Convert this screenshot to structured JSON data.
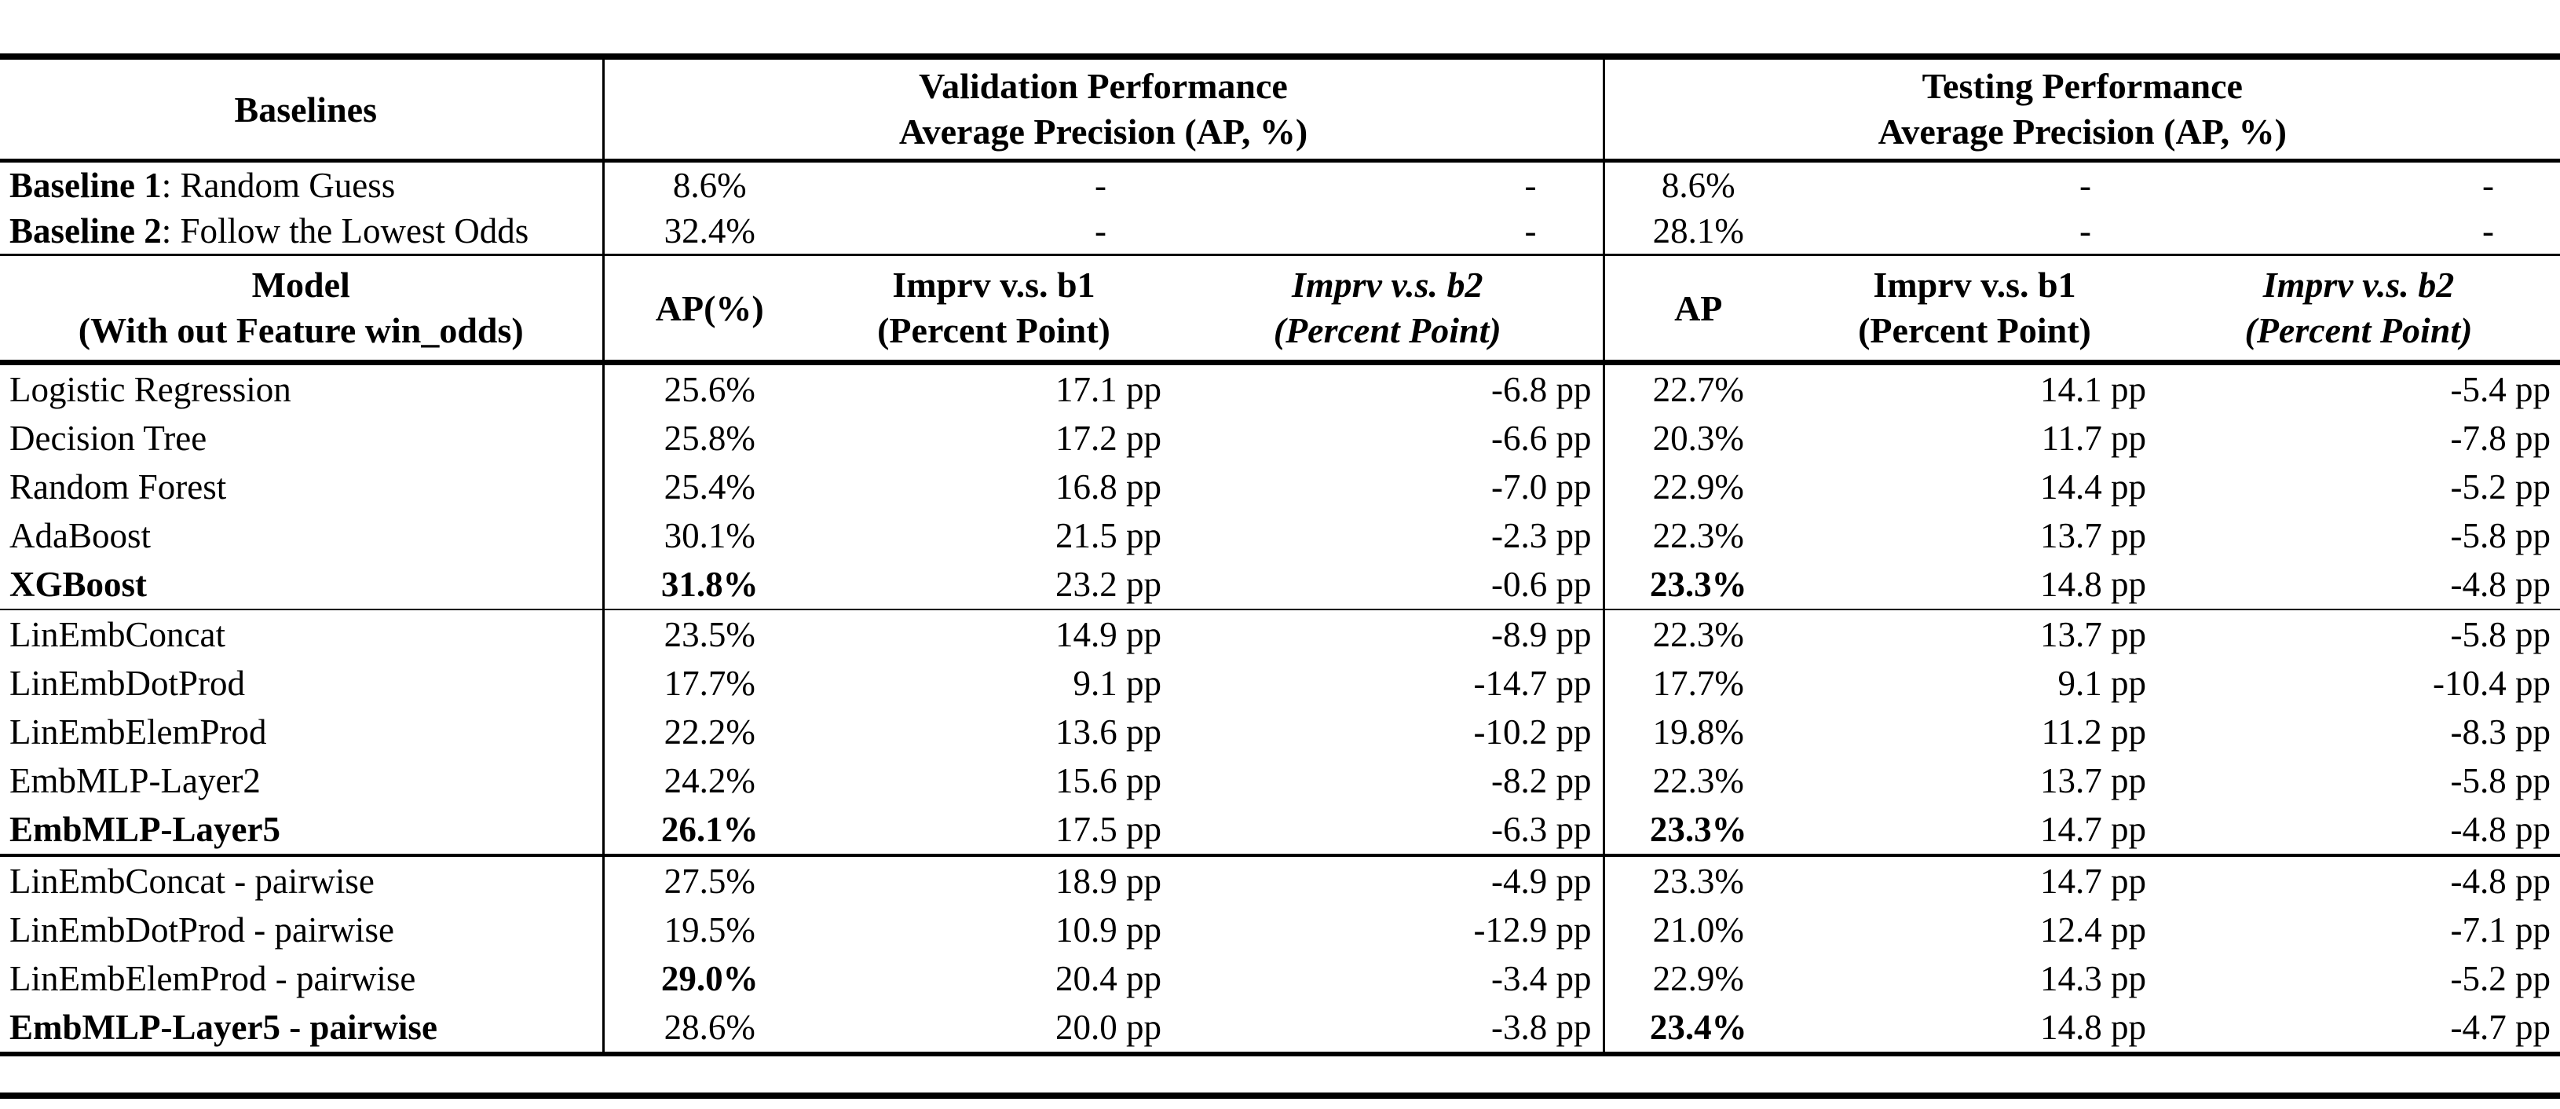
{
  "table": {
    "header": {
      "baselines_label": "Baselines",
      "validation_title": "Validation Performance",
      "validation_subtitle": "Average Precision (AP, %)",
      "testing_title": "Testing Performance",
      "testing_subtitle": "Average Precision (AP, %)",
      "model_title": "Model",
      "model_subtitle": "(With out Feature win_odds)",
      "val_ap_label": "AP(%)",
      "test_ap_label": "AP",
      "imprv_b1_label": "Imprv v.s. b1",
      "imprv_b1_sub": "(Percent Point)",
      "imprv_b2_label": "Imprv v.s. b2",
      "imprv_b2_sub": "(Percent Point)"
    },
    "baseline_rows": [
      {
        "prefix": "Baseline 1",
        "rest": ": Random Guess",
        "cells": [
          "8.6%",
          "-",
          "-",
          "8.6%",
          "-",
          "-"
        ]
      },
      {
        "prefix": "Baseline 2",
        "rest": ": Follow the Lowest Odds",
        "cells": [
          "32.4%",
          "-",
          "-",
          "28.1%",
          "-",
          "-"
        ]
      }
    ],
    "groups": [
      {
        "rows": [
          {
            "model": "Logistic Regression",
            "model_bold": false,
            "cells": [
              "25.6%",
              "17.1 pp",
              "-6.8 pp",
              "22.7%",
              "14.1 pp",
              "-5.4 pp"
            ],
            "bold": [
              false,
              false,
              false,
              false,
              false,
              false
            ]
          },
          {
            "model": "Decision Tree",
            "model_bold": false,
            "cells": [
              "25.8%",
              "17.2 pp",
              "-6.6 pp",
              "20.3%",
              "11.7 pp",
              "-7.8 pp"
            ],
            "bold": [
              false,
              false,
              false,
              false,
              false,
              false
            ]
          },
          {
            "model": "Random Forest",
            "model_bold": false,
            "cells": [
              "25.4%",
              "16.8 pp",
              "-7.0 pp",
              "22.9%",
              "14.4 pp",
              "-5.2 pp"
            ],
            "bold": [
              false,
              false,
              false,
              false,
              false,
              false
            ]
          },
          {
            "model": "AdaBoost",
            "model_bold": false,
            "cells": [
              "30.1%",
              "21.5 pp",
              "-2.3 pp",
              "22.3%",
              "13.7 pp",
              "-5.8 pp"
            ],
            "bold": [
              false,
              false,
              false,
              false,
              false,
              false
            ]
          },
          {
            "model": "XGBoost",
            "model_bold": true,
            "cells": [
              "31.8%",
              "23.2 pp",
              "-0.6 pp",
              "23.3%",
              "14.8 pp",
              "-4.8 pp"
            ],
            "bold": [
              true,
              false,
              false,
              true,
              false,
              false
            ]
          }
        ]
      },
      {
        "rows": [
          {
            "model": "LinEmbConcat",
            "model_bold": false,
            "cells": [
              "23.5%",
              "14.9 pp",
              "-8.9 pp",
              "22.3%",
              "13.7 pp",
              "-5.8 pp"
            ],
            "bold": [
              false,
              false,
              false,
              false,
              false,
              false
            ]
          },
          {
            "model": "LinEmbDotProd",
            "model_bold": false,
            "cells": [
              "17.7%",
              "9.1 pp",
              "-14.7 pp",
              "17.7%",
              "9.1 pp",
              "-10.4 pp"
            ],
            "bold": [
              false,
              false,
              false,
              false,
              false,
              false
            ]
          },
          {
            "model": "LinEmbElemProd",
            "model_bold": false,
            "cells": [
              "22.2%",
              "13.6 pp",
              "-10.2 pp",
              "19.8%",
              "11.2 pp",
              "-8.3 pp"
            ],
            "bold": [
              false,
              false,
              false,
              false,
              false,
              false
            ]
          },
          {
            "model": "EmbMLP-Layer2",
            "model_bold": false,
            "cells": [
              "24.2%",
              "15.6 pp",
              "-8.2 pp",
              "22.3%",
              "13.7 pp",
              "-5.8 pp"
            ],
            "bold": [
              false,
              false,
              false,
              false,
              false,
              false
            ]
          },
          {
            "model": "EmbMLP-Layer5",
            "model_bold": true,
            "cells": [
              "26.1%",
              "17.5 pp",
              "-6.3 pp",
              "23.3%",
              "14.7 pp",
              "-4.8 pp"
            ],
            "bold": [
              true,
              false,
              false,
              true,
              false,
              false
            ]
          }
        ]
      },
      {
        "rows": [
          {
            "model": "LinEmbConcat - pairwise",
            "model_bold": false,
            "cells": [
              "27.5%",
              "18.9 pp",
              "-4.9 pp",
              "23.3%",
              "14.7 pp",
              "-4.8 pp"
            ],
            "bold": [
              false,
              false,
              false,
              false,
              false,
              false
            ]
          },
          {
            "model": "LinEmbDotProd - pairwise",
            "model_bold": false,
            "cells": [
              "19.5%",
              "10.9 pp",
              "-12.9 pp",
              "21.0%",
              "12.4 pp",
              "-7.1 pp"
            ],
            "bold": [
              false,
              false,
              false,
              false,
              false,
              false
            ]
          },
          {
            "model": "LinEmbElemProd - pairwise",
            "model_bold": false,
            "cells": [
              "29.0%",
              "20.4 pp",
              "-3.4 pp",
              "22.9%",
              "14.3 pp",
              "-5.2 pp"
            ],
            "bold": [
              true,
              false,
              false,
              false,
              false,
              false
            ]
          },
          {
            "model": "EmbMLP-Layer5 - pairwise",
            "model_bold": true,
            "cells": [
              "28.6%",
              "20.0 pp",
              "-3.8 pp",
              "23.4%",
              "14.8 pp",
              "-4.7 pp"
            ],
            "bold": [
              false,
              false,
              false,
              true,
              false,
              false
            ]
          }
        ]
      }
    ]
  }
}
